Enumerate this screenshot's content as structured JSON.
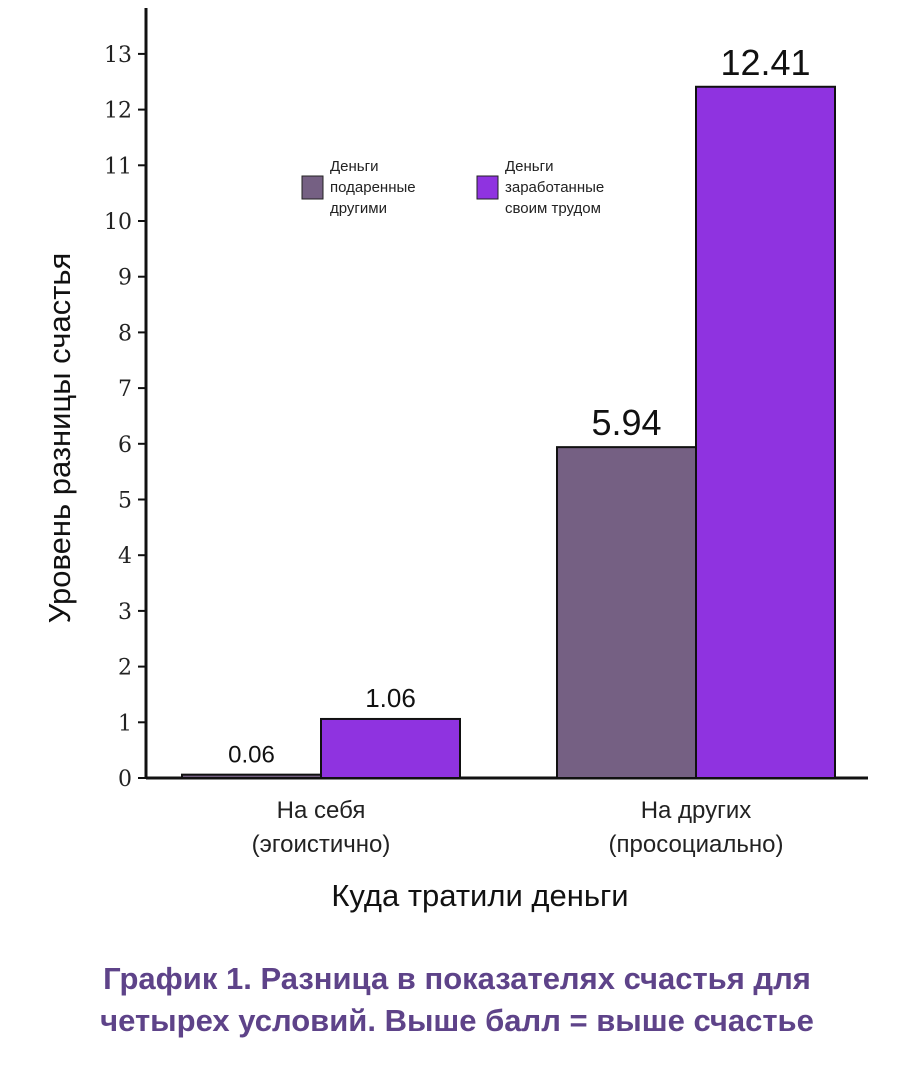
{
  "chart_data": {
    "type": "bar",
    "categories": [
      [
        "На себя",
        "(эгоистично)"
      ],
      [
        "На других",
        "(просоциально)"
      ]
    ],
    "series": [
      {
        "name": "Деньги подаренные другими",
        "legend_lines": [
          "Деньги",
          "подаренные",
          "другими"
        ],
        "color": "#756083",
        "values": [
          0.06,
          5.94
        ],
        "labels": [
          "0.06",
          "5.94"
        ]
      },
      {
        "name": "Деньги заработанные своим трудом",
        "legend_lines": [
          "Деньги",
          "заработанные",
          "своим трудом"
        ],
        "color": "#8f33e0",
        "values": [
          1.06,
          12.41
        ],
        "labels": [
          "1.06",
          "12.41"
        ]
      }
    ],
    "xlabel": "Куда тратили деньги",
    "ylabel": "Уровень разницы счастья",
    "ylim": [
      0,
      13.6
    ],
    "yticks": [
      "0",
      "1",
      "2",
      "3",
      "4",
      "5",
      "6",
      "7",
      "8",
      "9",
      "10",
      "11",
      "12",
      "13"
    ],
    "legend_position": "top-left"
  },
  "caption": {
    "line1": "График 1. Разница в показателях счастья для",
    "line2": "четырех условий. Выше балл = выше счастье"
  }
}
